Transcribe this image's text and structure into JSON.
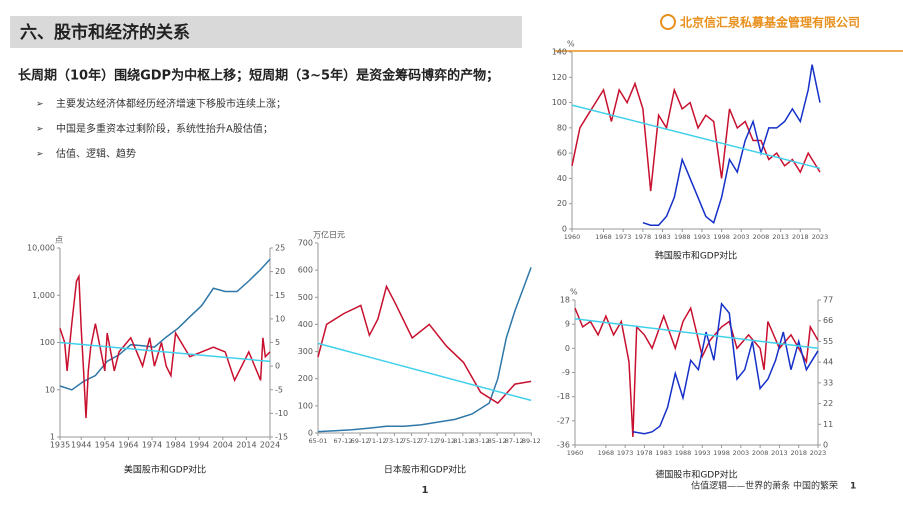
{
  "slide": {
    "title": "六、股市和经济的关系",
    "company": "北京信汇泉私募基金管理有限公司",
    "heading": "长周期（10年）围绕GDP为中枢上移；短周期（3~5年）是资金筹码博弈的产物；",
    "bullets": [
      "主要发达经济体都经历经济增速下移股市连续上涨；",
      "中国是多重资本过剩阶段，系统性抬升A股估值；",
      "估值、逻辑、趋势"
    ],
    "page_center": "1",
    "footer": "估值逻辑——世界的萧条 中国的繁荣",
    "page_right": "1"
  },
  "chart_data": [
    {
      "type": "line",
      "title": "美国股市和GDP对比",
      "y_label": "点",
      "xlim": [
        1935,
        2024
      ],
      "xticks": [
        1935,
        1944,
        1954,
        1964,
        1974,
        1984,
        1994,
        2004,
        2014,
        2024
      ],
      "log_y": true,
      "ylim": [
        1,
        10000
      ],
      "yticks": [
        1,
        10,
        100,
        {
          "value": 1000,
          "label": "1,000"
        },
        {
          "value": 10000,
          "label": "10,000"
        }
      ],
      "y2lim": [
        -15,
        25
      ],
      "y2ticks": [
        -15,
        -10,
        -5,
        0,
        5,
        10,
        15,
        20,
        25
      ],
      "series": [
        {
          "color": "#2f77a8",
          "x": [
            1935,
            1940,
            1945,
            1950,
            1955,
            1960,
            1965,
            1970,
            1975,
            1980,
            1985,
            1990,
            1995,
            2000,
            2005,
            2010,
            2015,
            2020,
            2024
          ],
          "values": [
            12,
            10,
            15,
            20,
            40,
            55,
            90,
            85,
            80,
            130,
            200,
            350,
            600,
            1400,
            1200,
            1200,
            2000,
            3500,
            5800
          ]
        },
        {
          "color": "#c8102e",
          "axis": "y2",
          "x": [
            1935,
            1937,
            1938,
            1940,
            1942,
            1943,
            1944,
            1945,
            1946,
            1947,
            1948,
            1950,
            1952,
            1954,
            1955,
            1958,
            1960,
            1965,
            1970,
            1973,
            1975,
            1978,
            1980,
            1982,
            1984,
            1990,
            1995,
            2000,
            2005,
            2009,
            2015,
            2020,
            2021,
            2022,
            2024
          ],
          "values": [
            8,
            5,
            -1,
            9,
            18,
            19,
            8,
            -1,
            -11,
            -1,
            4,
            9,
            4,
            -1,
            7,
            -1,
            3,
            6,
            0,
            6,
            0,
            5,
            0,
            -2,
            7,
            2,
            3,
            4,
            3,
            -3,
            3,
            -3,
            6,
            2,
            3
          ]
        },
        {
          "color": "#3fd0ec",
          "axis": "y2",
          "x": [
            1935,
            2024
          ],
          "values": [
            5,
            1
          ]
        }
      ]
    },
    {
      "type": "line",
      "title": "日本股市和GDP对比",
      "y_label": "万亿日元",
      "xlim": [
        1965,
        1990
      ],
      "xticks": [
        {
          "value": 1965,
          "label": "65-01"
        },
        {
          "value": 1967.92,
          "label": "67-12"
        },
        {
          "value": 1969.92,
          "label": "69-12"
        },
        {
          "value": 1971.92,
          "label": "71-12"
        },
        {
          "value": 1973.92,
          "label": "73-12"
        },
        {
          "value": 1975.92,
          "label": "75-12"
        },
        {
          "value": 1977.92,
          "label": "77-12"
        },
        {
          "value": 1979.92,
          "label": "79-12"
        },
        {
          "value": 1981.92,
          "label": "81-12"
        },
        {
          "value": 1983.92,
          "label": "83-12"
        },
        {
          "value": 1985.92,
          "label": "85-12"
        },
        {
          "value": 1987.92,
          "label": "87-12"
        },
        {
          "value": 1989.92,
          "label": "89-12"
        }
      ],
      "ylim": [
        0,
        700
      ],
      "yticks": [
        0,
        100,
        200,
        300,
        400,
        500,
        600,
        700
      ],
      "series": [
        {
          "color": "#2f77a8",
          "x": [
            1965,
            1967,
            1969,
            1971,
            1973,
            1975,
            1977,
            1979,
            1981,
            1983,
            1985,
            1986,
            1987,
            1988,
            1989.9
          ],
          "values": [
            5,
            8,
            12,
            18,
            25,
            25,
            30,
            40,
            50,
            70,
            110,
            200,
            350,
            450,
            610
          ]
        },
        {
          "color": "#c8102e",
          "x": [
            1965,
            1966,
            1968,
            1970,
            1971,
            1972,
            1973,
            1974,
            1976,
            1978,
            1980,
            1982,
            1984,
            1986,
            1988,
            1989.9
          ],
          "values": [
            280,
            400,
            440,
            470,
            360,
            420,
            540,
            480,
            350,
            400,
            320,
            260,
            150,
            110,
            180,
            190
          ]
        },
        {
          "color": "#3fd0ec",
          "x": [
            1965,
            1989.9
          ],
          "values": [
            330,
            120
          ]
        }
      ]
    },
    {
      "type": "line",
      "title": "韩国股市和GDP对比",
      "y_label": "%",
      "xlim": [
        1960,
        2023
      ],
      "xticks": [
        1960,
        1968,
        1973,
        1978,
        1983,
        1988,
        1993,
        1998,
        2003,
        2008,
        2013,
        2018,
        2023
      ],
      "ylim": [
        0,
        140
      ],
      "yticks": [
        0,
        20,
        40,
        60,
        80,
        100,
        120,
        140
      ],
      "series": [
        {
          "color": "#c8102e",
          "x": [
            1960,
            1962,
            1964,
            1966,
            1968,
            1970,
            1972,
            1974,
            1976,
            1978,
            1980,
            1982,
            1984,
            1986,
            1988,
            1990,
            1992,
            1994,
            1996,
            1998,
            2000,
            2002,
            2004,
            2006,
            2008,
            2010,
            2012,
            2014,
            2016,
            2018,
            2020,
            2023
          ],
          "values": [
            50,
            80,
            90,
            100,
            110,
            85,
            110,
            100,
            115,
            95,
            30,
            90,
            80,
            110,
            95,
            100,
            80,
            90,
            85,
            40,
            95,
            80,
            85,
            70,
            70,
            55,
            60,
            50,
            55,
            45,
            60,
            45
          ]
        },
        {
          "color": "#1530c8",
          "x": [
            1978,
            1980,
            1982,
            1984,
            1986,
            1988,
            1990,
            1992,
            1994,
            1996,
            1998,
            2000,
            2002,
            2004,
            2006,
            2008,
            2010,
            2012,
            2014,
            2016,
            2018,
            2020,
            2021,
            2023
          ],
          "values": [
            5,
            3,
            3,
            10,
            25,
            55,
            40,
            25,
            10,
            5,
            25,
            55,
            45,
            70,
            85,
            60,
            80,
            80,
            85,
            95,
            85,
            110,
            130,
            100
          ]
        },
        {
          "color": "#3fd0ec",
          "x": [
            1960,
            2023
          ],
          "values": [
            98,
            48
          ]
        }
      ]
    },
    {
      "type": "line",
      "title": "德国股市和GDP对比",
      "y_label": "%",
      "xlim": [
        1960,
        2023
      ],
      "xticks": [
        1960,
        1968,
        1973,
        1978,
        1983,
        1988,
        1993,
        1998,
        2003,
        2008,
        2013,
        2018,
        2023
      ],
      "ylim": [
        -36,
        18
      ],
      "yticks": [
        -36,
        -27,
        -18,
        -9,
        0,
        9,
        18
      ],
      "y2lim": [
        0,
        77
      ],
      "y2ticks": [
        0,
        11,
        22,
        33,
        44,
        55,
        66,
        77
      ],
      "series": [
        {
          "color": "#c8102e",
          "x": [
            1960,
            1962,
            1964,
            1966,
            1968,
            1970,
            1972,
            1974,
            1975,
            1976,
            1978,
            1980,
            1983,
            1986,
            1988,
            1990,
            1993,
            1995,
            1998,
            2000,
            2002,
            2005,
            2008,
            2009,
            2010,
            2013,
            2016,
            2018,
            2020,
            2021,
            2023
          ],
          "values": [
            15,
            8,
            10,
            5,
            12,
            5,
            10,
            -5,
            -33,
            8,
            5,
            0,
            12,
            0,
            10,
            15,
            -3,
            3,
            8,
            10,
            0,
            5,
            0,
            -8,
            10,
            0,
            5,
            0,
            -5,
            8,
            3
          ]
        },
        {
          "color": "#1530c8",
          "axis": "y2",
          "x": [
            1975,
            1978,
            1980,
            1982,
            1984,
            1986,
            1988,
            1990,
            1992,
            1994,
            1996,
            1998,
            2000,
            2002,
            2004,
            2006,
            2008,
            2010,
            2012,
            2014,
            2016,
            2018,
            2020,
            2023
          ],
          "values": [
            7,
            6,
            7,
            10,
            20,
            38,
            25,
            45,
            40,
            60,
            45,
            75,
            70,
            35,
            40,
            55,
            30,
            35,
            45,
            60,
            40,
            55,
            40,
            50
          ]
        },
        {
          "color": "#3fd0ec",
          "x": [
            1960,
            2023
          ],
          "values": [
            11,
            0
          ]
        }
      ]
    }
  ]
}
